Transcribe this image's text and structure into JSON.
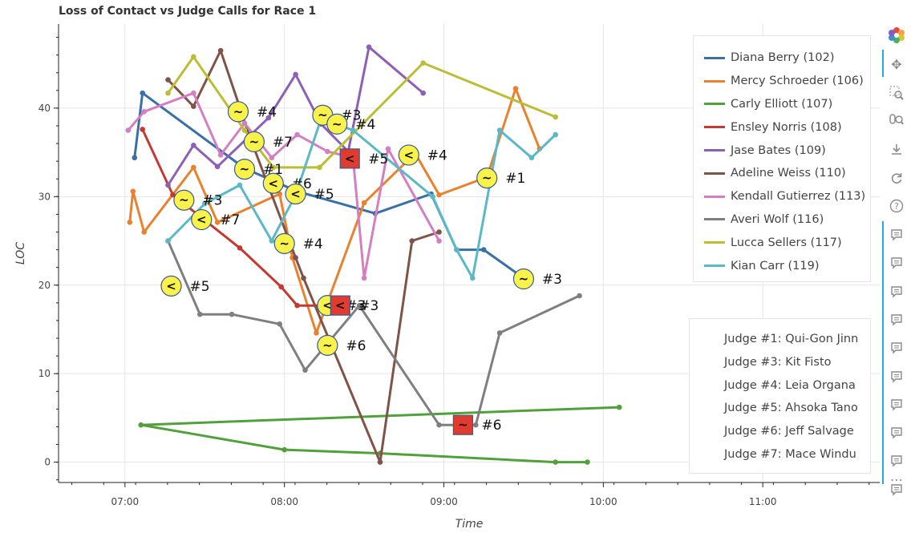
{
  "chart_data": {
    "type": "line",
    "title": "Loss of Contact vs Judge Calls for Race 1",
    "xlabel": "Time",
    "ylabel": "LOC",
    "x_ticks": [
      "07:00",
      "08:00",
      "09:00",
      "10:00",
      "11:00"
    ],
    "y_ticks": [
      0,
      10,
      20,
      30,
      40
    ],
    "xlim_minutes": [
      395,
      704
    ],
    "ylim": [
      -2.3,
      49.5
    ],
    "grid": true,
    "legend_placement": "top-right",
    "series": [
      {
        "name": "Diana Berry (102)",
        "color": "#3a6fa8",
        "points": [
          [
            7.06,
            34.4
          ],
          [
            7.11,
            41.7
          ],
          [
            7.75,
            33.2
          ],
          [
            8.08,
            30.6
          ],
          [
            8.57,
            28.1
          ],
          [
            8.92,
            30.3
          ],
          [
            9.08,
            24.0
          ],
          [
            9.25,
            24.0
          ],
          [
            9.5,
            20.8
          ]
        ]
      },
      {
        "name": "Mercy Schroeder (106)",
        "color": "#e8822e",
        "points": [
          [
            7.03,
            27.1
          ],
          [
            7.05,
            30.6
          ],
          [
            7.12,
            26.0
          ],
          [
            7.43,
            33.3
          ],
          [
            7.58,
            27.1
          ],
          [
            7.97,
            30.3
          ],
          [
            8.05,
            23.1
          ],
          [
            8.2,
            14.6
          ],
          [
            8.5,
            29.3
          ],
          [
            8.82,
            34.9
          ],
          [
            8.97,
            30.2
          ],
          [
            9.27,
            32.2
          ],
          [
            9.45,
            42.2
          ],
          [
            9.6,
            35.4
          ]
        ]
      },
      {
        "name": "Carly Elliott (107)",
        "color": "#52a03c",
        "points": [
          [
            10.1,
            6.2
          ],
          [
            7.1,
            4.2
          ],
          [
            8.0,
            1.4
          ],
          [
            8.6,
            1.0
          ],
          [
            9.7,
            0.0
          ],
          [
            9.9,
            0.0
          ]
        ]
      },
      {
        "name": "Ensley Norris (108)",
        "color": "#c23b32",
        "points": [
          [
            7.11,
            37.6
          ],
          [
            7.3,
            30.2
          ],
          [
            7.72,
            24.2
          ],
          [
            7.98,
            19.8
          ],
          [
            8.08,
            17.7
          ],
          [
            8.28,
            17.7
          ],
          [
            8.37,
            17.7
          ]
        ]
      },
      {
        "name": "Jase Bates (109)",
        "color": "#8d5fb5",
        "points": [
          [
            7.27,
            31.3
          ],
          [
            7.43,
            35.8
          ],
          [
            7.58,
            33.4
          ],
          [
            7.9,
            38.9
          ],
          [
            8.07,
            43.8
          ],
          [
            8.23,
            38.2
          ],
          [
            8.4,
            35.1
          ],
          [
            8.53,
            46.9
          ],
          [
            8.87,
            41.7
          ]
        ]
      },
      {
        "name": "Adeline Weiss (110)",
        "color": "#7f5347",
        "points": [
          [
            7.27,
            43.2
          ],
          [
            7.43,
            40.2
          ],
          [
            7.6,
            46.5
          ],
          [
            7.78,
            36.9
          ],
          [
            8.07,
            23.1
          ],
          [
            8.12,
            20.8
          ],
          [
            8.6,
            0.0
          ],
          [
            8.8,
            25.0
          ],
          [
            8.97,
            26.0
          ]
        ]
      },
      {
        "name": "Kendall Gutierrez (113)",
        "color": "#d47fc2",
        "points": [
          [
            7.02,
            37.5
          ],
          [
            7.12,
            39.6
          ],
          [
            7.43,
            41.7
          ],
          [
            7.6,
            34.7
          ],
          [
            7.75,
            38.3
          ],
          [
            7.92,
            34.4
          ],
          [
            8.08,
            37.0
          ],
          [
            8.27,
            35.1
          ],
          [
            8.43,
            34.4
          ],
          [
            8.5,
            20.8
          ],
          [
            8.65,
            35.4
          ],
          [
            8.97,
            25.0
          ]
        ]
      },
      {
        "name": "Averi Wolf (116)",
        "color": "#7f7f7f",
        "points": [
          [
            7.27,
            25.0
          ],
          [
            7.47,
            16.7
          ],
          [
            7.67,
            16.7
          ],
          [
            7.97,
            15.6
          ],
          [
            8.13,
            10.4
          ],
          [
            8.47,
            17.7
          ],
          [
            8.97,
            4.2
          ],
          [
            9.2,
            4.2
          ],
          [
            9.35,
            14.6
          ],
          [
            9.85,
            18.8
          ]
        ]
      },
      {
        "name": "Lucca Sellers (117)",
        "color": "#bcbd36",
        "points": [
          [
            7.27,
            41.7
          ],
          [
            7.43,
            45.8
          ],
          [
            7.75,
            37.5
          ],
          [
            7.93,
            33.3
          ],
          [
            8.22,
            33.3
          ],
          [
            8.87,
            45.1
          ],
          [
            9.7,
            39.0
          ]
        ]
      },
      {
        "name": "Kian Carr (119)",
        "color": "#5bb8c7",
        "points": [
          [
            7.27,
            25.0
          ],
          [
            7.5,
            29.2
          ],
          [
            7.72,
            31.3
          ],
          [
            7.92,
            25.0
          ],
          [
            8.07,
            30.2
          ],
          [
            8.23,
            38.8
          ],
          [
            8.43,
            37.5
          ],
          [
            8.93,
            30.0
          ],
          [
            9.08,
            24.0
          ],
          [
            9.18,
            20.8
          ],
          [
            9.35,
            37.5
          ],
          [
            9.55,
            34.4
          ],
          [
            9.7,
            37.0
          ]
        ]
      }
    ],
    "judge_calls": [
      {
        "x": 7.37,
        "y": 29.6,
        "symbol": "~",
        "judge": "#3",
        "penalty": false
      },
      {
        "x": 7.29,
        "y": 19.9,
        "symbol": "<",
        "judge": "#5",
        "penalty": false
      },
      {
        "x": 7.48,
        "y": 27.4,
        "symbol": "<",
        "judge": "#7",
        "penalty": false
      },
      {
        "x": 7.71,
        "y": 39.6,
        "symbol": "~",
        "judge": "#4",
        "penalty": false
      },
      {
        "x": 7.75,
        "y": 33.1,
        "symbol": "~",
        "judge": "#1",
        "penalty": false
      },
      {
        "x": 7.81,
        "y": 36.2,
        "symbol": "~",
        "judge": "#7",
        "penalty": false
      },
      {
        "x": 7.93,
        "y": 31.5,
        "symbol": "<",
        "judge": "#6",
        "penalty": false
      },
      {
        "x": 8.0,
        "y": 24.7,
        "symbol": "~",
        "judge": "#4",
        "penalty": false
      },
      {
        "x": 8.07,
        "y": 30.3,
        "symbol": "<",
        "judge": "#5",
        "penalty": false
      },
      {
        "x": 8.24,
        "y": 39.2,
        "symbol": "~",
        "judge": "#3",
        "penalty": false
      },
      {
        "x": 8.33,
        "y": 38.2,
        "symbol": "~",
        "judge": "#4",
        "penalty": false
      },
      {
        "x": 8.41,
        "y": 34.3,
        "symbol": "<",
        "judge": "#5",
        "penalty": true
      },
      {
        "x": 8.27,
        "y": 17.7,
        "symbol": "<",
        "judge": "#3",
        "penalty": false
      },
      {
        "x": 8.35,
        "y": 17.7,
        "symbol": "<",
        "judge": "#3",
        "penalty": true
      },
      {
        "x": 8.27,
        "y": 13.2,
        "symbol": "~",
        "judge": "#6",
        "penalty": false
      },
      {
        "x": 8.78,
        "y": 34.7,
        "symbol": "<",
        "judge": "#4",
        "penalty": false
      },
      {
        "x": 9.27,
        "y": 32.1,
        "symbol": "~",
        "judge": "#1",
        "penalty": false
      },
      {
        "x": 9.5,
        "y": 20.7,
        "symbol": "~",
        "judge": "#3",
        "penalty": false
      },
      {
        "x": 9.12,
        "y": 4.2,
        "symbol": "~",
        "judge": "#6",
        "penalty": true
      }
    ]
  },
  "legend_judges": [
    "Judge #1: Qui-Gon Jinn",
    "Judge #3: Kit Fisto",
    "Judge #4: Leia Organa",
    "Judge #5: Ahsoka Tano",
    "Judge #6: Jeff Salvage",
    "Judge #7: Mace Windu"
  ],
  "toolbar": {
    "icons": [
      "bokeh-logo-icon",
      "pan-icon",
      "box-zoom-icon",
      "wheel-zoom-icon",
      "save-icon",
      "reset-icon",
      "help-icon",
      "hover-icon",
      "hover-icon",
      "hover-icon",
      "hover-icon",
      "hover-icon",
      "hover-icon",
      "hover-icon",
      "hover-icon",
      "hover-icon",
      "hover-icon",
      "more-icon"
    ]
  }
}
